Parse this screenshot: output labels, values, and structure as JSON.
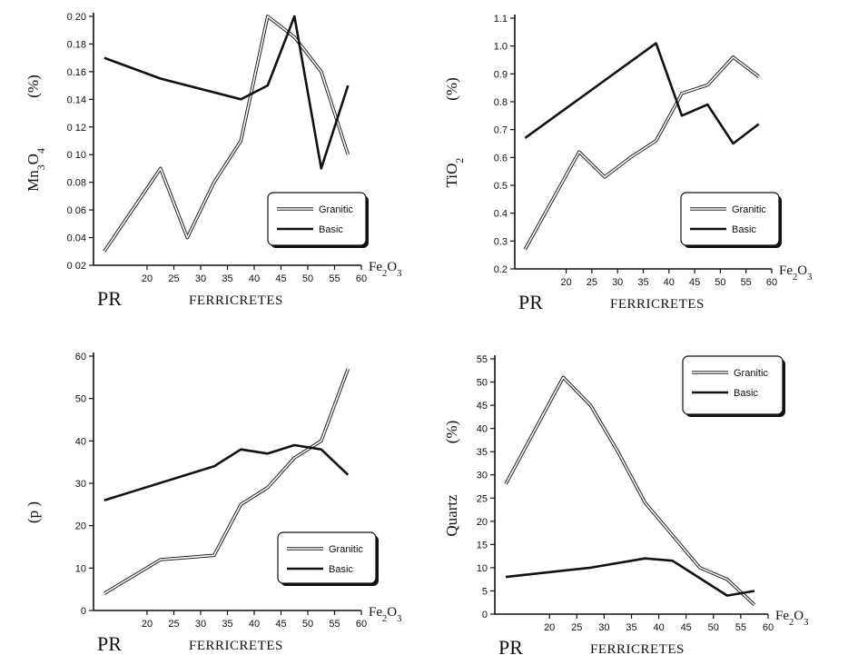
{
  "chart_data": [
    {
      "type": "line",
      "ylabel": "Mn3O4",
      "yunit": "(%)",
      "xlabel": "FERRICRETES",
      "xunit": "Fe2O3",
      "start_label": "PR",
      "xlim": [
        10,
        60
      ],
      "ylim": [
        0.02,
        0.2
      ],
      "xticks": [
        "20",
        "25",
        "30",
        "35",
        "40",
        "45",
        "50",
        "55",
        "60"
      ],
      "yticks": [
        "0 02",
        "0.04",
        "0 06",
        "0.08",
        "0 10",
        "0 12",
        "0.14",
        "0.16",
        "0.18",
        "0 20"
      ],
      "legend": {
        "position": "lower-right"
      },
      "series": [
        {
          "name": "Granitic",
          "style": "double",
          "points": [
            [
              12,
              0.03
            ],
            [
              22.5,
              0.09
            ],
            [
              27.5,
              0.04
            ],
            [
              32.5,
              0.08
            ],
            [
              37.5,
              0.11
            ],
            [
              42.5,
              0.2
            ],
            [
              47.5,
              0.185
            ],
            [
              52.5,
              0.16
            ],
            [
              57.5,
              0.1
            ]
          ]
        },
        {
          "name": "Basic",
          "style": "solid",
          "points": [
            [
              12,
              0.17
            ],
            [
              22.5,
              0.155
            ],
            [
              27.5,
              0.15
            ],
            [
              37.5,
              0.14
            ],
            [
              42.5,
              0.15
            ],
            [
              47.5,
              0.2
            ],
            [
              52.5,
              0.09
            ],
            [
              57.5,
              0.15
            ]
          ]
        }
      ]
    },
    {
      "type": "line",
      "ylabel": "TiO2",
      "yunit": "(%)",
      "xlabel": "FERRICRETES",
      "xunit": "Fe2O3",
      "start_label": "PR",
      "xlim": [
        10,
        60
      ],
      "ylim": [
        0.2,
        1.1
      ],
      "xticks": [
        "20",
        "25",
        "30",
        "35",
        "40",
        "45",
        "50",
        "55",
        "60"
      ],
      "yticks": [
        "0.2",
        "0.3",
        "0.4",
        "0.5",
        "0.6",
        "0.7",
        "0.8",
        "0.9",
        "1.0",
        "1.1"
      ],
      "legend": {
        "position": "lower-right"
      },
      "series": [
        {
          "name": "Granitic",
          "style": "double",
          "points": [
            [
              12,
              0.27
            ],
            [
              22.5,
              0.62
            ],
            [
              27.5,
              0.53
            ],
            [
              32.5,
              0.6
            ],
            [
              37.5,
              0.66
            ],
            [
              42.5,
              0.83
            ],
            [
              47.5,
              0.86
            ],
            [
              52.5,
              0.96
            ],
            [
              57.5,
              0.89
            ]
          ]
        },
        {
          "name": "Basic",
          "style": "solid",
          "points": [
            [
              12,
              0.67
            ],
            [
              37.5,
              1.01
            ],
            [
              42.5,
              0.75
            ],
            [
              47.5,
              0.79
            ],
            [
              52.5,
              0.65
            ],
            [
              57.5,
              0.72
            ]
          ]
        }
      ]
    },
    {
      "type": "line",
      "ylabel": "(p    )",
      "yunit": "",
      "xlabel": "FERRICRETES",
      "xunit": "Fe2O3",
      "start_label": "PR",
      "xlim": [
        10,
        60
      ],
      "ylim": [
        0,
        60
      ],
      "xticks": [
        "20",
        "25",
        "30",
        "35",
        "40",
        "45",
        "50",
        "55",
        "60"
      ],
      "yticks": [
        "0",
        "10",
        "20",
        "30",
        "40",
        "50",
        "60"
      ],
      "legend": {
        "position": "lower-right"
      },
      "series": [
        {
          "name": "Granitic",
          "style": "double",
          "points": [
            [
              12,
              4
            ],
            [
              22.5,
              12
            ],
            [
              27.5,
              12.5
            ],
            [
              32.5,
              13
            ],
            [
              37.5,
              25
            ],
            [
              42.5,
              29
            ],
            [
              47.5,
              36
            ],
            [
              52.5,
              40
            ],
            [
              57.5,
              57
            ]
          ]
        },
        {
          "name": "Basic",
          "style": "solid",
          "points": [
            [
              12,
              26
            ],
            [
              32.5,
              34
            ],
            [
              37.5,
              38
            ],
            [
              42.5,
              37
            ],
            [
              47.5,
              39
            ],
            [
              52.5,
              38
            ],
            [
              57.5,
              32
            ]
          ]
        }
      ]
    },
    {
      "type": "line",
      "ylabel": "Quartz",
      "yunit": "(%)",
      "xlabel": "FERRICRETES",
      "xunit": "Fe2O3",
      "start_label": "PR",
      "xlim": [
        10,
        60
      ],
      "ylim": [
        0,
        55
      ],
      "xticks": [
        "20",
        "25",
        "30",
        "35",
        "40",
        "45",
        "50",
        "55",
        "60"
      ],
      "yticks": [
        "0",
        "5",
        "10",
        "15",
        "20",
        "25",
        "30",
        "35",
        "40",
        "45",
        "50",
        "55"
      ],
      "legend": {
        "position": "top-right"
      },
      "series": [
        {
          "name": "Granitic",
          "style": "double",
          "points": [
            [
              12,
              28
            ],
            [
              22.5,
              51
            ],
            [
              27.5,
              45
            ],
            [
              32.5,
              35
            ],
            [
              37.5,
              24
            ],
            [
              42.5,
              17
            ],
            [
              47.5,
              10
            ],
            [
              52.5,
              7.5
            ],
            [
              57.5,
              2
            ]
          ]
        },
        {
          "name": "Basic",
          "style": "solid",
          "points": [
            [
              12,
              8
            ],
            [
              27.5,
              10
            ],
            [
              37.5,
              12
            ],
            [
              42.5,
              11.5
            ],
            [
              52.5,
              4
            ],
            [
              57.5,
              5
            ]
          ]
        }
      ]
    }
  ]
}
